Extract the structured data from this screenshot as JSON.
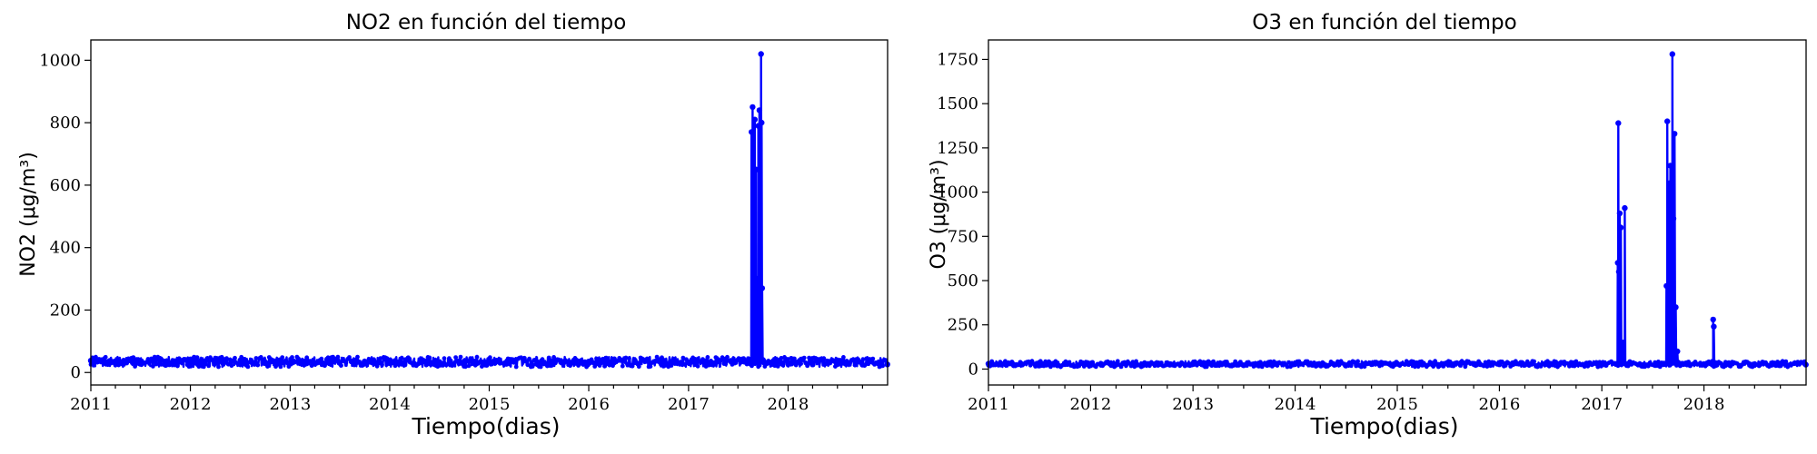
{
  "chart_data": [
    {
      "type": "line",
      "title": "NO2 en función del tiempo",
      "xlabel": "Tiempo(dias)",
      "ylabel": "NO2 (μg/m³)",
      "xlim": [
        "2011-01-01",
        "2019-01-01"
      ],
      "ylim": [
        -40,
        1065
      ],
      "xticks": [
        "2011",
        "2012",
        "2013",
        "2014",
        "2015",
        "2016",
        "2017",
        "2018"
      ],
      "yticks": [
        0,
        200,
        400,
        600,
        800,
        1000
      ],
      "grid": false,
      "legend": "none",
      "color": "#0000ff",
      "baseline": {
        "min": 18,
        "max": 50
      },
      "x": [
        "2011-01-01",
        "2011-04-01",
        "2011-07-01",
        "2011-10-01",
        "2012-01-01",
        "2012-04-01",
        "2012-07-01",
        "2012-10-01",
        "2013-01-01",
        "2013-04-01",
        "2013-07-01",
        "2013-10-01",
        "2014-01-01",
        "2014-04-01",
        "2014-07-01",
        "2014-10-01",
        "2015-01-01",
        "2015-04-01",
        "2015-07-01",
        "2015-10-01",
        "2016-01-01",
        "2016-04-01",
        "2016-07-01",
        "2016-10-01",
        "2017-01-01",
        "2017-04-01",
        "2017-08-20",
        "2017-08-24",
        "2017-08-28",
        "2017-09-01",
        "2017-09-05",
        "2017-09-09",
        "2017-09-14",
        "2017-09-18",
        "2017-09-24",
        "2017-09-26",
        "2017-09-28",
        "2017-10-01",
        "2017-10-05",
        "2017-10-15",
        "2018-01-01",
        "2018-04-01",
        "2018-07-01",
        "2018-10-01",
        "2018-12-31"
      ],
      "y": [
        38,
        30,
        28,
        35,
        42,
        30,
        27,
        33,
        30,
        28,
        31,
        35,
        30,
        27,
        25,
        33,
        38,
        35,
        30,
        32,
        35,
        33,
        28,
        38,
        32,
        30,
        770,
        850,
        370,
        810,
        650,
        300,
        790,
        840,
        1020,
        800,
        270,
        40,
        32,
        30,
        28,
        26,
        27,
        25,
        26
      ]
    },
    {
      "type": "line",
      "title": "O3 en función del tiempo",
      "xlabel": "Tiempo(dias)",
      "ylabel": "O3 (μg/m³)",
      "xlim": [
        "2011-01-01",
        "2019-01-01"
      ],
      "ylim": [
        -90,
        1860
      ],
      "xticks": [
        "2011",
        "2012",
        "2013",
        "2014",
        "2015",
        "2016",
        "2017",
        "2018"
      ],
      "yticks": [
        0,
        250,
        500,
        750,
        1000,
        1250,
        1500,
        1750
      ],
      "grid": false,
      "legend": "none",
      "color": "#0000ff",
      "baseline": {
        "min": 12,
        "max": 45
      },
      "x": [
        "2011-01-01",
        "2011-04-01",
        "2011-07-01",
        "2011-10-01",
        "2012-01-01",
        "2012-04-01",
        "2012-07-01",
        "2012-10-01",
        "2013-01-01",
        "2013-04-01",
        "2013-07-01",
        "2013-10-01",
        "2014-01-01",
        "2014-04-01",
        "2014-07-01",
        "2014-10-01",
        "2015-01-01",
        "2015-04-01",
        "2015-07-01",
        "2015-10-01",
        "2016-01-01",
        "2016-04-01",
        "2016-07-01",
        "2016-10-01",
        "2017-01-01",
        "2017-02-25",
        "2017-02-27",
        "2017-03-01",
        "2017-03-03",
        "2017-03-06",
        "2017-03-10",
        "2017-03-18",
        "2017-03-24",
        "2017-04-05",
        "2017-06-01",
        "2017-08-15",
        "2017-08-20",
        "2017-08-23",
        "2017-08-27",
        "2017-08-30",
        "2017-09-03",
        "2017-09-06",
        "2017-09-10",
        "2017-09-14",
        "2017-09-18",
        "2017-09-22",
        "2017-09-28",
        "2017-10-15",
        "2018-01-01",
        "2018-02-01",
        "2018-02-03",
        "2018-02-05",
        "2018-02-10",
        "2018-04-01",
        "2018-07-01",
        "2018-10-01",
        "2018-12-31"
      ],
      "y": [
        30,
        25,
        20,
        28,
        22,
        25,
        20,
        30,
        28,
        25,
        22,
        30,
        28,
        25,
        20,
        28,
        30,
        25,
        28,
        30,
        27,
        25,
        30,
        28,
        30,
        30,
        600,
        1390,
        550,
        880,
        800,
        150,
        910,
        30,
        25,
        30,
        470,
        1400,
        150,
        1050,
        1150,
        800,
        1780,
        850,
        1330,
        350,
        100,
        30,
        28,
        25,
        280,
        240,
        30,
        25,
        28,
        22,
        25
      ]
    }
  ]
}
